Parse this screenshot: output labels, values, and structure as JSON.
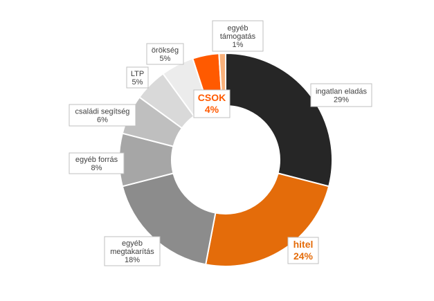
{
  "chart_data": {
    "type": "pie",
    "donut": true,
    "title": "",
    "legend": "none",
    "slices": [
      {
        "key": "ingatlan",
        "label_lines": [
          "ingatlan eladás"
        ],
        "value": 29,
        "value_text": "29%",
        "color": "#262626",
        "label_color": "#404040",
        "emphasis": false
      },
      {
        "key": "hitel",
        "label_lines": [
          "hitel"
        ],
        "value": 24,
        "value_text": "24%",
        "color": "#e46c0a",
        "label_color": "#e46c0a",
        "emphasis": true
      },
      {
        "key": "megtakaritas",
        "label_lines": [
          "egyéb",
          "megtakarítás"
        ],
        "value": 18,
        "value_text": "18%",
        "color": "#8c8c8c",
        "label_color": "#404040",
        "emphasis": false
      },
      {
        "key": "forras",
        "label_lines": [
          "egyéb forrás"
        ],
        "value": 8,
        "value_text": "8%",
        "color": "#a6a6a6",
        "label_color": "#404040",
        "emphasis": false
      },
      {
        "key": "csaladi",
        "label_lines": [
          "családi segítség"
        ],
        "value": 6,
        "value_text": "6%",
        "color": "#bfbfbf",
        "label_color": "#404040",
        "emphasis": false
      },
      {
        "key": "ltp",
        "label_lines": [
          "LTP"
        ],
        "value": 5,
        "value_text": "5%",
        "color": "#d9d9d9",
        "label_color": "#404040",
        "emphasis": false
      },
      {
        "key": "orokseg",
        "label_lines": [
          "örökség"
        ],
        "value": 5,
        "value_text": "5%",
        "color": "#ececec",
        "label_color": "#404040",
        "emphasis": false
      },
      {
        "key": "csok",
        "label_lines": [
          "CSOK"
        ],
        "value": 4,
        "value_text": "4%",
        "color": "#ff5a00",
        "label_color": "#ff5a00",
        "emphasis": true
      },
      {
        "key": "tamogatas",
        "label_lines": [
          "egyéb",
          "támogatás"
        ],
        "value": 1,
        "value_text": "1%",
        "color": "#fab17a",
        "label_color": "#404040",
        "emphasis": false
      }
    ]
  }
}
